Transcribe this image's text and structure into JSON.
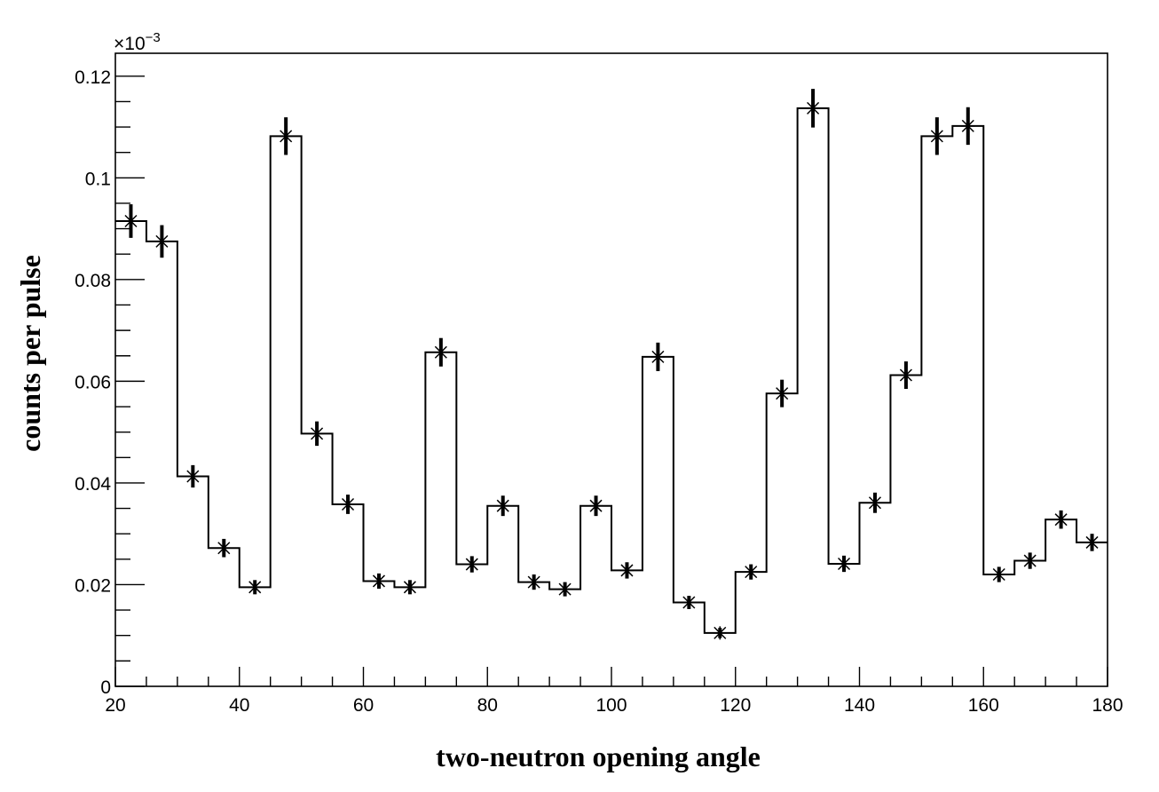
{
  "chart_data": {
    "type": "histogram",
    "title": "",
    "xlabel": "two-neutron opening angle",
    "ylabel": "counts per pulse",
    "y_multiplier_base": "×10",
    "y_multiplier_exponent": "−3",
    "xlim": [
      20,
      180
    ],
    "ylim": [
      0,
      0.1245
    ],
    "bin_edges": [
      20,
      25,
      30,
      35,
      40,
      45,
      50,
      55,
      60,
      65,
      70,
      75,
      80,
      85,
      90,
      95,
      100,
      105,
      110,
      115,
      120,
      125,
      130,
      135,
      140,
      145,
      150,
      155,
      160,
      165,
      170,
      175,
      180
    ],
    "values": [
      0.0915,
      0.0875,
      0.0413,
      0.0272,
      0.0195,
      0.1082,
      0.0497,
      0.0358,
      0.0207,
      0.0195,
      0.0657,
      0.024,
      0.0355,
      0.0205,
      0.0191,
      0.0355,
      0.0228,
      0.0648,
      0.0165,
      0.0105,
      0.0225,
      0.0576,
      0.1137,
      0.0241,
      0.0361,
      0.0612,
      0.1082,
      0.1102,
      0.022,
      0.0247,
      0.0328,
      0.0283
    ],
    "errors": [
      0.0033,
      0.0032,
      0.0022,
      0.0018,
      0.0014,
      0.0037,
      0.0024,
      0.0019,
      0.0015,
      0.0014,
      0.0028,
      0.0016,
      0.002,
      0.0015,
      0.0014,
      0.002,
      0.0016,
      0.0028,
      0.0013,
      0.001,
      0.0015,
      0.0027,
      0.0038,
      0.0016,
      0.002,
      0.0027,
      0.0037,
      0.0037,
      0.0015,
      0.0016,
      0.0018,
      0.0017
    ],
    "x_ticks": [
      20,
      40,
      60,
      80,
      100,
      120,
      140,
      160,
      180
    ],
    "x_tick_labels": [
      "20",
      "40",
      "60",
      "80",
      "100",
      "120",
      "140",
      "160",
      "180"
    ],
    "y_ticks": [
      0,
      0.02,
      0.04,
      0.06,
      0.08,
      0.1,
      0.12
    ],
    "y_tick_labels": [
      "0",
      "0.02",
      "0.04",
      "0.06",
      "0.08",
      "0.1",
      "0.12"
    ],
    "grid": false,
    "marker": "asterisk",
    "color": "#000000"
  }
}
